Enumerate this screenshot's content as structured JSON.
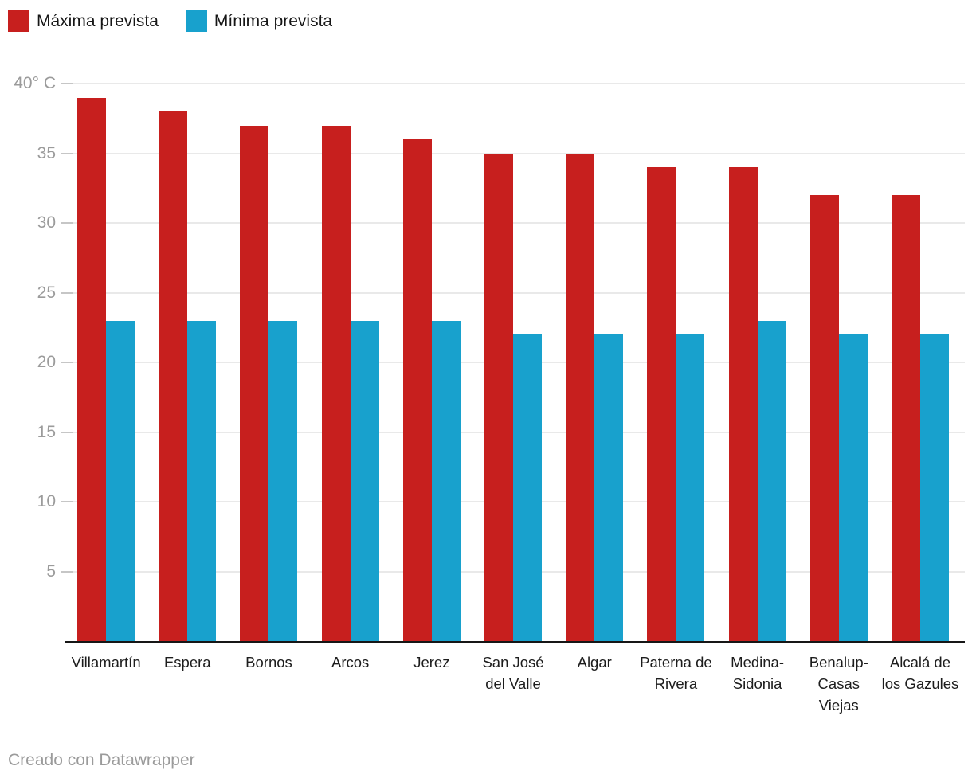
{
  "legend": {
    "items": [
      {
        "label": "Máxima prevista",
        "color": "#c71f1e"
      },
      {
        "label": "Mínima prevista",
        "color": "#18a1cd"
      }
    ]
  },
  "chart_data": {
    "type": "bar",
    "categories": [
      "Villamartín",
      "Espera",
      "Bornos",
      "Arcos",
      "Jerez",
      "San José del Valle",
      "Algar",
      "Paterna de Rivera",
      "Medina-Sidonia",
      "Benalup-Casas Viejas",
      "Alcalá de los Gazules"
    ],
    "series": [
      {
        "name": "Máxima prevista",
        "color": "#c71f1e",
        "values": [
          39,
          38,
          37,
          37,
          36,
          35,
          35,
          34,
          34,
          32,
          32
        ]
      },
      {
        "name": "Mínima prevista",
        "color": "#18a1cd",
        "values": [
          23,
          23,
          23,
          23,
          23,
          22,
          22,
          22,
          23,
          22,
          22
        ]
      }
    ],
    "title": "",
    "xlabel": "",
    "ylabel": "",
    "ylim": [
      0,
      40
    ],
    "yticks": [
      5,
      10,
      15,
      20,
      25,
      30,
      35,
      40
    ],
    "ytick_top_label": "40° C",
    "grid": true,
    "legend_position": "top"
  },
  "footer": {
    "credit": "Creado con Datawrapper"
  },
  "colors": {
    "gridline": "#e9e9e9",
    "tick": "#c6c6c6",
    "axis_text": "#9b9b9b",
    "category_text": "#1d1d1d",
    "baseline": "#161616"
  }
}
